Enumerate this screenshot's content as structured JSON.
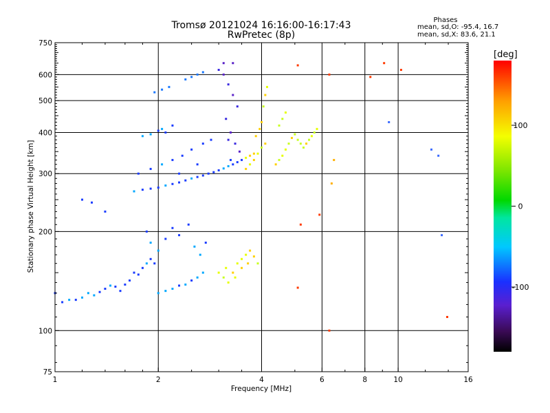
{
  "chart_data": {
    "type": "scatter",
    "title": "Tromsø 20121024 16:16:00-16:17:43",
    "subtitle": "RwPretec (8p)",
    "xlabel": "Frequency [MHz]",
    "ylabel": "Stationary phase Virtual Height [km]",
    "x_scale": "log",
    "y_scale": "log",
    "xlim": [
      1,
      16
    ],
    "ylim": [
      75,
      750
    ],
    "x_ticks": [
      1,
      2,
      4,
      6,
      8,
      10,
      16
    ],
    "x_tick_labels": [
      "1",
      "2",
      "4",
      "6",
      "8",
      "10",
      "16"
    ],
    "x_gridlines": [
      2,
      4,
      6,
      8,
      10
    ],
    "y_ticks": [
      75,
      100,
      200,
      300,
      400,
      500,
      600,
      750
    ],
    "y_tick_labels": [
      "75",
      "100",
      "200",
      "300",
      "400",
      "500",
      "600",
      "750"
    ],
    "y_gridlines": [
      100,
      200,
      300,
      400,
      500,
      600
    ],
    "grid": true,
    "stats": {
      "header": "Phases",
      "line_o": "mean, sd,O: -95.4, 16.7",
      "line_x": "mean, sd,X:  83.6, 21.1"
    },
    "colorbar": {
      "unit": "[deg]",
      "min": -180,
      "max": 180,
      "ticks": [
        100,
        0,
        -100
      ],
      "tick_labels": [
        "100",
        "0",
        "-100"
      ],
      "colormap": "rainbow (black-purple-blue-cyan-green-yellow-red)"
    },
    "series": [
      {
        "values": [
          [
            1.0,
            130
          ],
          [
            1.05,
            122
          ],
          [
            1.1,
            124
          ],
          [
            1.15,
            124
          ],
          [
            1.2,
            126
          ],
          [
            1.25,
            130
          ],
          [
            1.3,
            128
          ],
          [
            1.35,
            131
          ],
          [
            1.4,
            134
          ],
          [
            1.45,
            137
          ],
          [
            1.5,
            136
          ],
          [
            1.55,
            132
          ],
          [
            1.6,
            138
          ],
          [
            1.65,
            142
          ],
          [
            1.7,
            150
          ],
          [
            1.75,
            148
          ],
          [
            1.8,
            155
          ],
          [
            1.85,
            160
          ],
          [
            1.9,
            165
          ],
          [
            1.95,
            160
          ],
          [
            2.0,
            130
          ],
          [
            2.1,
            132
          ],
          [
            2.2,
            134
          ],
          [
            2.3,
            137
          ],
          [
            2.4,
            138
          ],
          [
            2.5,
            142
          ],
          [
            2.6,
            145
          ],
          [
            2.7,
            150
          ],
          [
            1.85,
            200
          ],
          [
            1.9,
            185
          ],
          [
            2.0,
            175
          ],
          [
            2.1,
            190
          ],
          [
            2.2,
            205
          ],
          [
            2.3,
            195
          ],
          [
            2.45,
            210
          ],
          [
            2.55,
            180
          ],
          [
            2.65,
            170
          ],
          [
            2.75,
            185
          ]
        ]
      },
      {
        "values": [
          [
            1.7,
            265
          ],
          [
            1.8,
            268
          ],
          [
            1.9,
            270
          ],
          [
            2.0,
            272
          ],
          [
            2.1,
            276
          ],
          [
            2.2,
            279
          ],
          [
            2.3,
            282
          ],
          [
            2.4,
            286
          ],
          [
            2.5,
            290
          ],
          [
            2.6,
            293
          ],
          [
            2.7,
            296
          ],
          [
            2.8,
            300
          ],
          [
            2.9,
            303
          ],
          [
            3.0,
            307
          ],
          [
            3.1,
            311
          ],
          [
            3.2,
            316
          ],
          [
            3.3,
            320
          ],
          [
            3.4,
            325
          ],
          [
            3.5,
            330
          ],
          [
            3.6,
            335
          ],
          [
            3.7,
            340
          ],
          [
            3.8,
            345
          ],
          [
            1.75,
            300
          ],
          [
            1.9,
            310
          ],
          [
            2.05,
            320
          ],
          [
            2.2,
            330
          ],
          [
            2.35,
            340
          ],
          [
            2.5,
            355
          ],
          [
            2.7,
            370
          ],
          [
            2.85,
            380
          ],
          [
            2.3,
            300
          ],
          [
            2.6,
            320
          ]
        ]
      },
      {
        "values": [
          [
            1.8,
            390
          ],
          [
            1.9,
            395
          ],
          [
            2.0,
            405
          ],
          [
            2.05,
            410
          ],
          [
            2.1,
            400
          ],
          [
            2.2,
            420
          ],
          [
            1.95,
            530
          ],
          [
            2.05,
            540
          ],
          [
            2.15,
            550
          ],
          [
            2.4,
            580
          ],
          [
            2.5,
            590
          ],
          [
            2.6,
            600
          ],
          [
            2.7,
            610
          ],
          [
            3.0,
            620
          ],
          [
            3.1,
            600
          ],
          [
            3.2,
            560
          ],
          [
            3.3,
            520
          ],
          [
            3.4,
            480
          ],
          [
            3.15,
            440
          ],
          [
            3.25,
            400
          ],
          [
            3.35,
            370
          ],
          [
            3.45,
            350
          ],
          [
            3.1,
            650
          ],
          [
            3.3,
            650
          ],
          [
            3.2,
            380
          ],
          [
            3.25,
            330
          ]
        ]
      },
      {
        "values": [
          [
            3.6,
            310
          ],
          [
            3.7,
            320
          ],
          [
            3.8,
            330
          ],
          [
            3.9,
            345
          ],
          [
            4.0,
            360
          ],
          [
            4.1,
            370
          ],
          [
            3.85,
            390
          ],
          [
            3.95,
            410
          ],
          [
            4.0,
            430
          ],
          [
            4.05,
            480
          ],
          [
            4.1,
            520
          ],
          [
            4.15,
            550
          ],
          [
            4.4,
            320
          ],
          [
            4.5,
            330
          ],
          [
            4.6,
            340
          ],
          [
            4.7,
            355
          ],
          [
            4.8,
            370
          ],
          [
            4.9,
            385
          ],
          [
            5.0,
            395
          ],
          [
            5.1,
            380
          ],
          [
            5.2,
            370
          ],
          [
            5.3,
            360
          ],
          [
            5.4,
            370
          ],
          [
            5.5,
            380
          ],
          [
            5.6,
            390
          ],
          [
            5.7,
            400
          ],
          [
            5.8,
            410
          ],
          [
            4.5,
            420
          ],
          [
            4.6,
            440
          ],
          [
            4.7,
            460
          ],
          [
            3.0,
            150
          ],
          [
            3.1,
            145
          ],
          [
            3.2,
            140
          ],
          [
            3.3,
            150
          ],
          [
            3.4,
            160
          ],
          [
            3.5,
            165
          ],
          [
            3.6,
            170
          ],
          [
            3.7,
            175
          ],
          [
            3.8,
            168
          ],
          [
            3.9,
            160
          ],
          [
            3.15,
            155
          ],
          [
            3.35,
            145
          ],
          [
            3.5,
            155
          ],
          [
            3.65,
            160
          ]
        ]
      },
      {
        "values": [
          [
            5.1,
            640
          ],
          [
            6.3,
            600
          ],
          [
            8.3,
            590
          ],
          [
            9.1,
            650
          ],
          [
            9.4,
            430
          ],
          [
            10.2,
            620
          ],
          [
            12.5,
            355
          ],
          [
            13.1,
            340
          ],
          [
            13.4,
            195
          ],
          [
            13.9,
            110
          ],
          [
            6.3,
            100
          ],
          [
            5.1,
            135
          ],
          [
            5.2,
            210
          ],
          [
            5.9,
            225
          ],
          [
            6.5,
            330
          ],
          [
            6.4,
            280
          ],
          [
            1.4,
            230
          ],
          [
            1.28,
            245
          ],
          [
            1.2,
            250
          ]
        ]
      }
    ]
  }
}
